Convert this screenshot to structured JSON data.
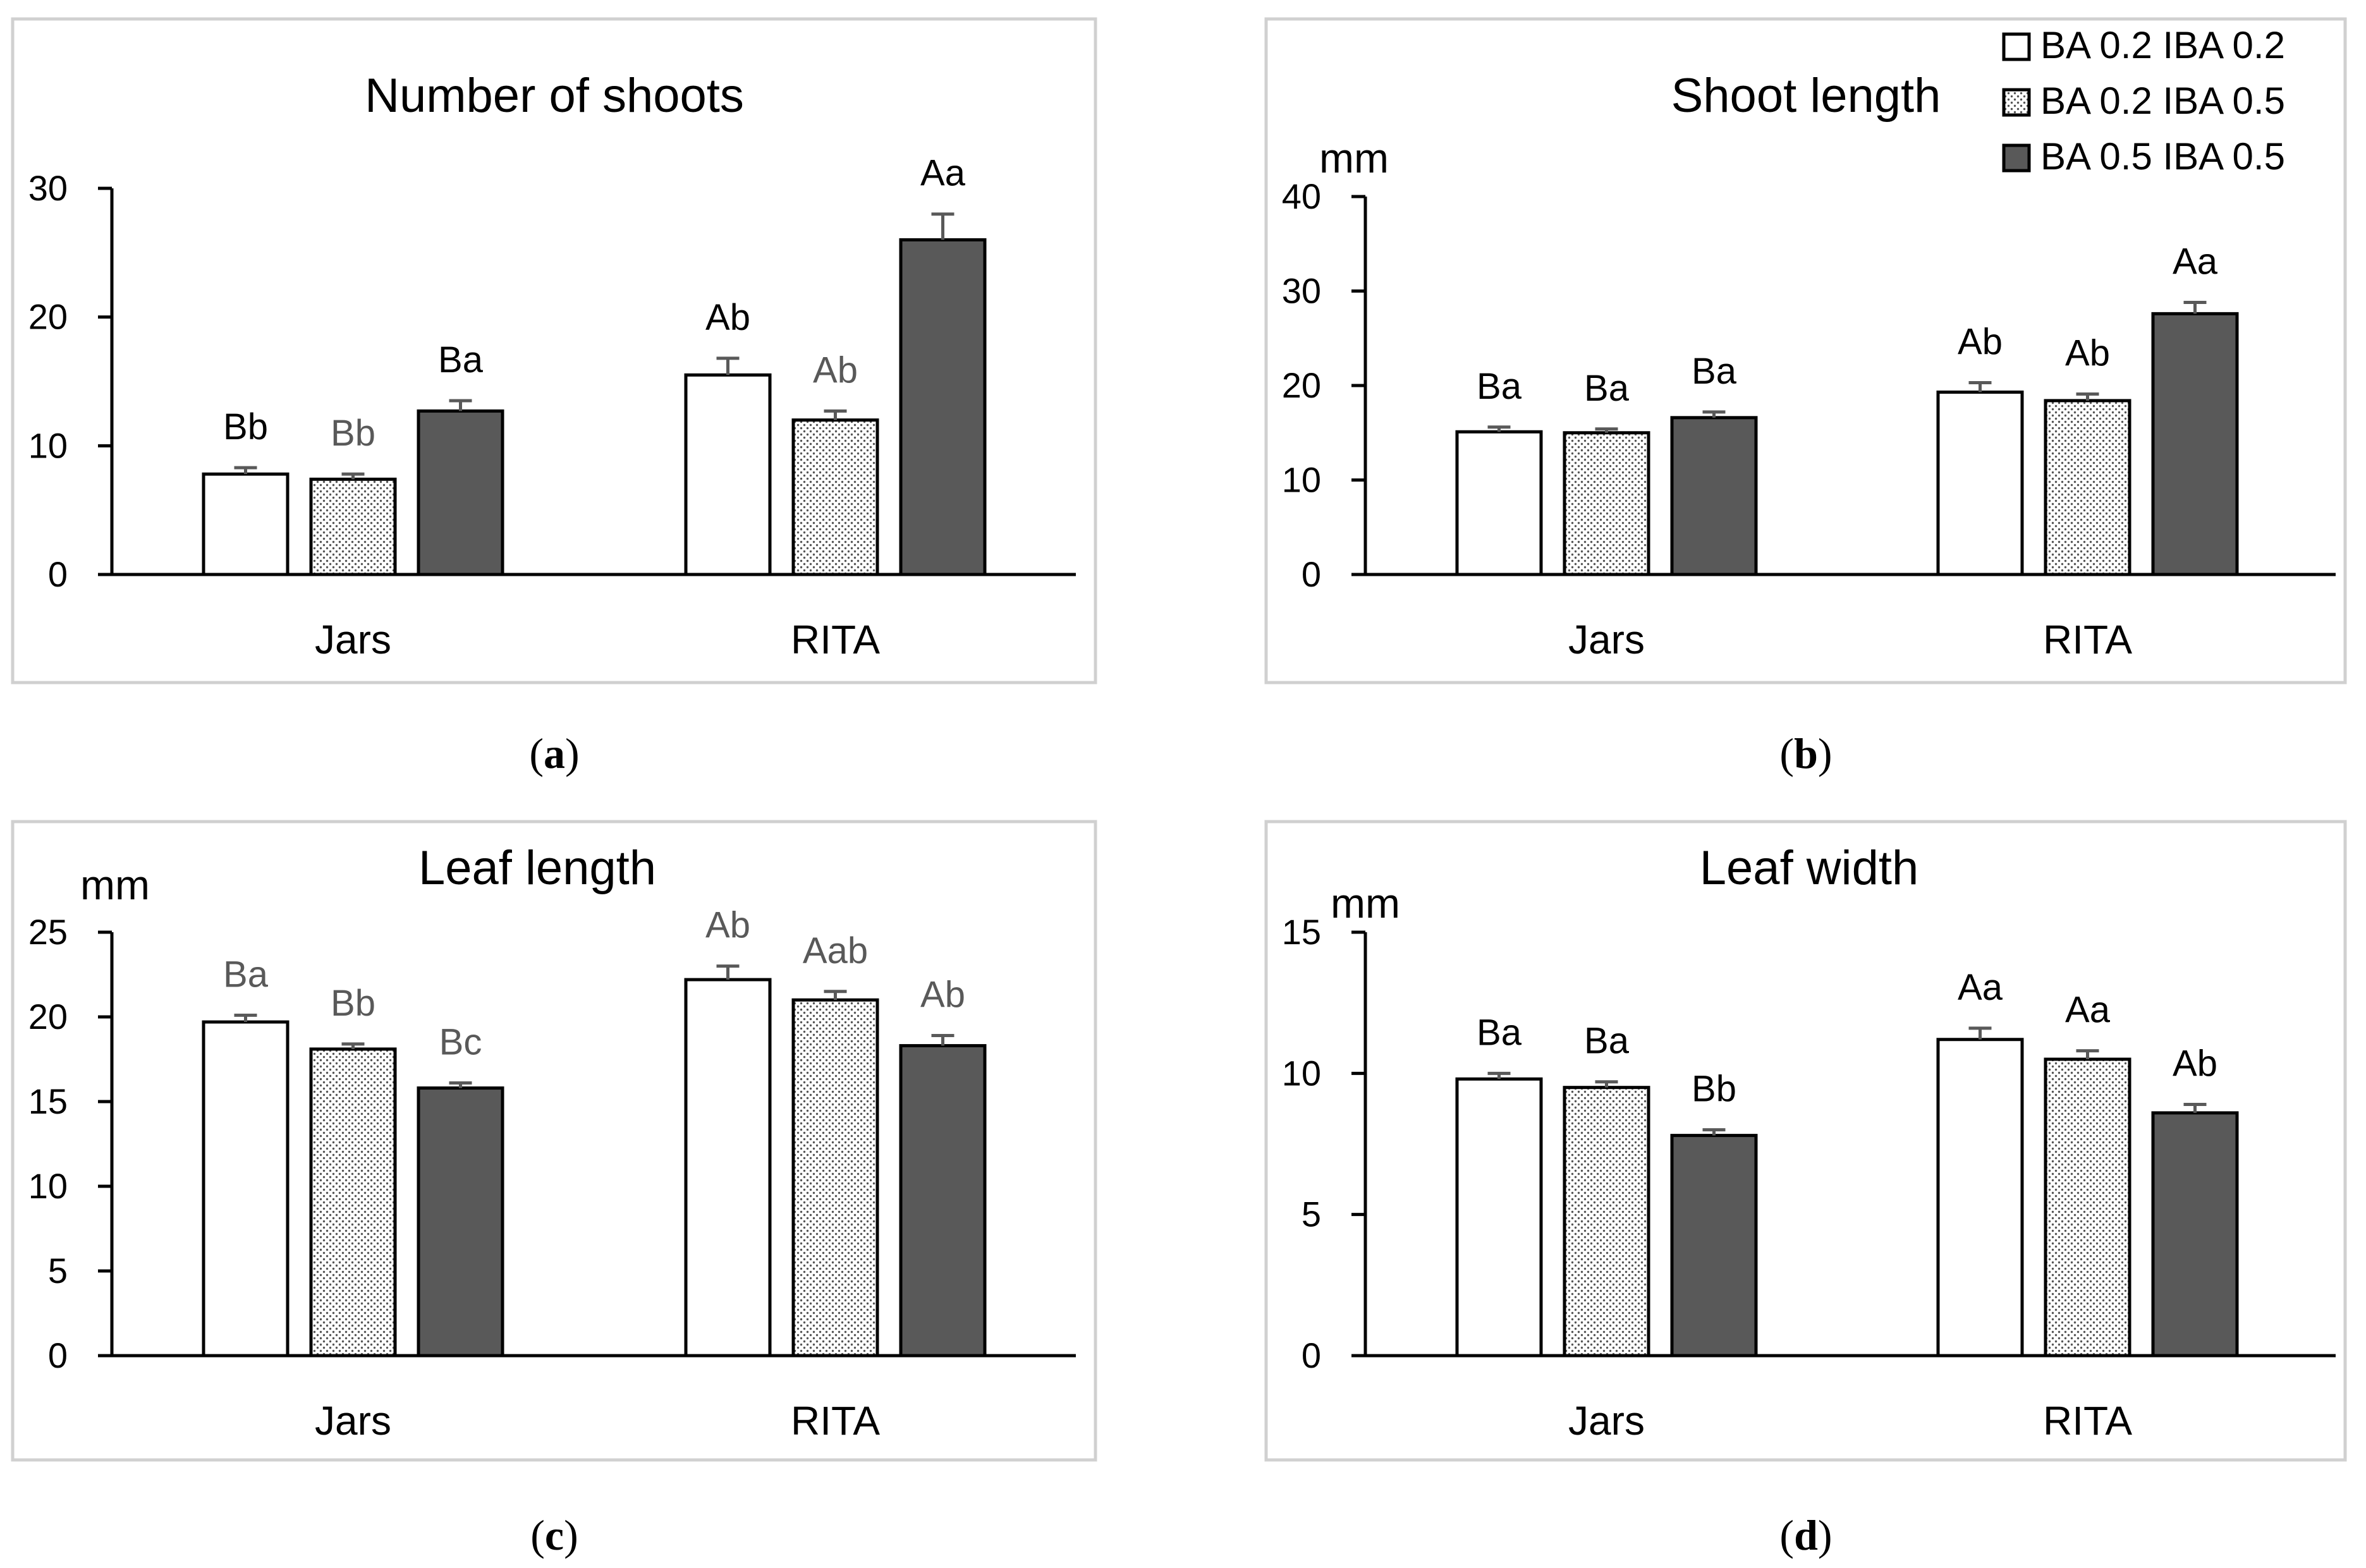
{
  "legend": [
    {
      "name": "BA 0.2 IBA 0.2",
      "fill": "white"
    },
    {
      "name": "BA 0.2 IBA 0.5",
      "fill": "dots"
    },
    {
      "name": "BA 0.5 IBA 0.5",
      "fill": "dark"
    }
  ],
  "colors": {
    "dark_bar": "#595959",
    "label_gray": "#595959",
    "frame": "#d0d0d0"
  },
  "chart_data": [
    {
      "type": "bar",
      "panel": "(a)",
      "caption_letter": "a",
      "title": "Number of shoots",
      "ylabel": "",
      "ylim": [
        0,
        30
      ],
      "yticks": [
        0,
        10,
        20,
        30
      ],
      "categories": [
        "Jars",
        "RITA"
      ],
      "series": [
        {
          "name": "BA 0.2 IBA 0.2",
          "values": [
            7.8,
            15.5
          ],
          "errors": [
            0.5,
            1.3
          ],
          "labels": [
            "Bb",
            "Ab"
          ],
          "label_colors": [
            "#000000",
            "#000000"
          ]
        },
        {
          "name": "BA 0.2 IBA 0.5",
          "values": [
            7.4,
            12.0
          ],
          "errors": [
            0.4,
            0.7
          ],
          "labels": [
            "Bb",
            "Ab"
          ],
          "label_colors": [
            "#595959",
            "#595959"
          ]
        },
        {
          "name": "BA 0.5 IBA 0.5",
          "values": [
            12.7,
            26.0
          ],
          "errors": [
            0.8,
            2.0
          ],
          "labels": [
            "Ba",
            "Aa"
          ],
          "label_colors": [
            "#000000",
            "#000000"
          ]
        }
      ]
    },
    {
      "type": "bar",
      "panel": "(b)",
      "caption_letter": "b",
      "title": "Shoot length",
      "ylabel": "mm",
      "ylim": [
        0,
        40
      ],
      "yticks": [
        0,
        10,
        20,
        30,
        40
      ],
      "categories": [
        "Jars",
        "RITA"
      ],
      "series": [
        {
          "name": "BA 0.2 IBA 0.2",
          "values": [
            15.1,
            19.3
          ],
          "errors": [
            0.5,
            1.0
          ],
          "labels": [
            "Ba",
            "Ab"
          ],
          "label_colors": [
            "#000000",
            "#000000"
          ]
        },
        {
          "name": "BA 0.2 IBA 0.5",
          "values": [
            15.0,
            18.4
          ],
          "errors": [
            0.4,
            0.7
          ],
          "labels": [
            "Ba",
            "Ab"
          ],
          "label_colors": [
            "#000000",
            "#000000"
          ]
        },
        {
          "name": "BA 0.5 IBA 0.5",
          "values": [
            16.6,
            27.6
          ],
          "errors": [
            0.6,
            1.2
          ],
          "labels": [
            "Ba",
            "Aa"
          ],
          "label_colors": [
            "#000000",
            "#000000"
          ]
        }
      ]
    },
    {
      "type": "bar",
      "panel": "(c)",
      "caption_letter": "c",
      "title": "Leaf length",
      "ylabel": "mm",
      "ylim": [
        0,
        25
      ],
      "yticks": [
        0,
        5,
        10,
        15,
        20,
        25
      ],
      "categories": [
        "Jars",
        "RITA"
      ],
      "series": [
        {
          "name": "BA 0.2 IBA 0.2",
          "values": [
            19.7,
            22.2
          ],
          "errors": [
            0.4,
            0.8
          ],
          "labels": [
            "Ba",
            "Ab"
          ],
          "label_colors": [
            "#595959",
            "#595959"
          ]
        },
        {
          "name": "BA 0.2 IBA 0.5",
          "values": [
            18.1,
            21.0
          ],
          "errors": [
            0.3,
            0.5
          ],
          "labels": [
            "Bb",
            "Aab"
          ],
          "label_colors": [
            "#595959",
            "#595959"
          ]
        },
        {
          "name": "BA 0.5 IBA 0.5",
          "values": [
            15.8,
            18.3
          ],
          "errors": [
            0.3,
            0.6
          ],
          "labels": [
            "Bc",
            "Ab"
          ],
          "label_colors": [
            "#595959",
            "#595959"
          ]
        }
      ]
    },
    {
      "type": "bar",
      "panel": "(d)",
      "caption_letter": "d",
      "title": "Leaf width",
      "ylabel": "mm",
      "ylim": [
        0,
        15
      ],
      "yticks": [
        0,
        5,
        10,
        15
      ],
      "categories": [
        "Jars",
        "RITA"
      ],
      "series": [
        {
          "name": "BA 0.2 IBA 0.2",
          "values": [
            9.8,
            11.2
          ],
          "errors": [
            0.2,
            0.4
          ],
          "labels": [
            "Ba",
            "Aa"
          ],
          "label_colors": [
            "#000000",
            "#000000"
          ]
        },
        {
          "name": "BA 0.2 IBA 0.5",
          "values": [
            9.5,
            10.5
          ],
          "errors": [
            0.2,
            0.3
          ],
          "labels": [
            "Ba",
            "Aa"
          ],
          "label_colors": [
            "#000000",
            "#000000"
          ]
        },
        {
          "name": "BA 0.5 IBA 0.5",
          "values": [
            7.8,
            8.6
          ],
          "errors": [
            0.2,
            0.3
          ],
          "labels": [
            "Bb",
            "Ab"
          ],
          "label_colors": [
            "#000000",
            "#000000"
          ]
        }
      ]
    }
  ]
}
